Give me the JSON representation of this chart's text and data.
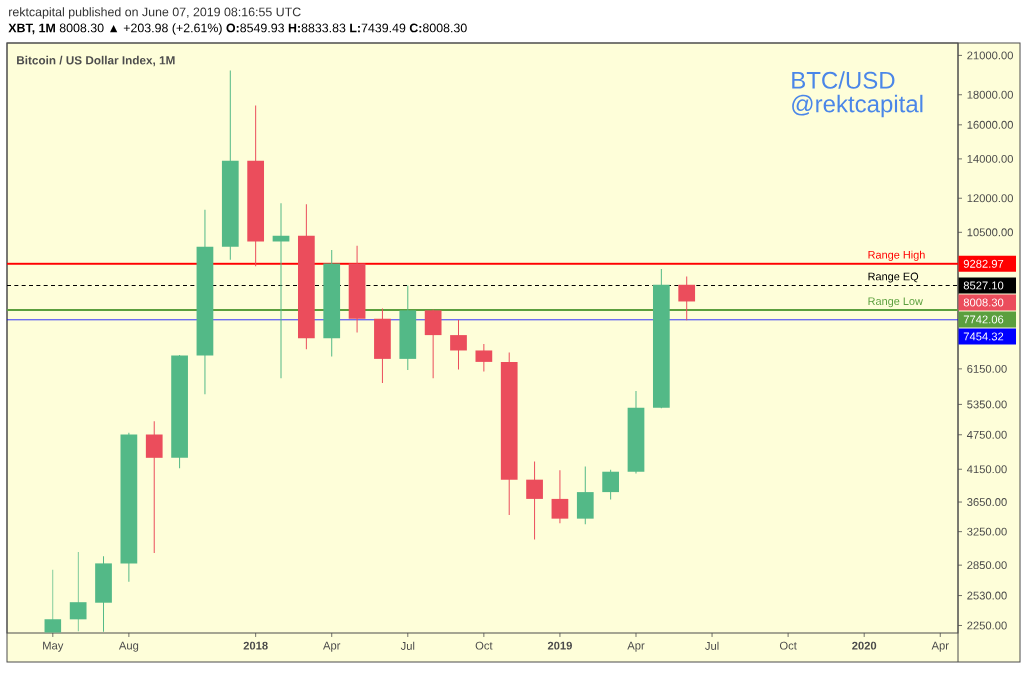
{
  "chart_data": {
    "type": "candlestick",
    "title": "Bitcoin / US Dollar Index, 1M",
    "subtitle": "**XBT, 1M** 8008.30 ▲ +203.98 (+2.61%) **O:**8549.93 **H:**8833.83 **L:**7439.49 **C:**8008.30",
    "annotations": [
      "rektcapital published on June 07, 2019 08:16:55 UTC",
      "BTC/USD",
      "@rektcapital",
      "9282.97",
      "8527.10",
      "8008.30",
      "7742.06",
      "7454.32"
    ],
    "x": [
      "2017-05",
      "2017-06",
      "2017-07",
      "2017-08",
      "2017-09",
      "2017-10",
      "2017-11",
      "2017-12",
      "2018-01",
      "2018-02",
      "2018-03",
      "2018-04",
      "2018-05",
      "2018-06",
      "2018-07",
      "2018-08",
      "2018-09",
      "2018-10",
      "2018-11",
      "2018-12",
      "2019-01",
      "2019-02",
      "2019-03",
      "2019-04",
      "2019-05",
      "2019-06"
    ],
    "ohlc": [
      [
        2190,
        2800,
        2190,
        2305
      ],
      [
        2305,
        3000,
        2200,
        2465
      ],
      [
        2460,
        2950,
        2195,
        2870
      ],
      [
        2870,
        4790,
        2670,
        4755
      ],
      [
        4755,
        5010,
        2990,
        4340
      ],
      [
        4340,
        6490,
        4165,
        6480
      ],
      [
        6480,
        11470,
        5565,
        9920
      ],
      [
        9920,
        19790,
        9430,
        13900
      ],
      [
        13900,
        17250,
        9190,
        10130
      ],
      [
        10130,
        11770,
        5925,
        10360
      ],
      [
        10360,
        11720,
        6640,
        6935
      ],
      [
        6935,
        9800,
        6455,
        9290
      ],
      [
        9290,
        9965,
        7095,
        7485
      ],
      [
        7485,
        7795,
        5820,
        6395
      ],
      [
        6395,
        8525,
        6125,
        7735
      ],
      [
        7735,
        7760,
        5925,
        7020
      ],
      [
        7020,
        7450,
        6135,
        6610
      ],
      [
        6610,
        6780,
        6085,
        6320
      ],
      [
        6320,
        6560,
        3470,
        3985
      ],
      [
        3985,
        4280,
        3150,
        3695
      ],
      [
        3695,
        4135,
        3360,
        3420
      ],
      [
        3420,
        4195,
        3345,
        3795
      ],
      [
        3795,
        4140,
        3685,
        4110
      ],
      [
        4110,
        5640,
        4080,
        5280
      ],
      [
        5280,
        9095,
        5270,
        8550
      ],
      [
        8549.93,
        8833.83,
        7439.49,
        8008.3
      ]
    ],
    "colors": [
      "#53b987",
      "#53b987",
      "#53b987",
      "#53b987",
      "#eb4d5c",
      "#53b987",
      "#53b987",
      "#53b987",
      "#eb4d5c",
      "#53b987",
      "#eb4d5c",
      "#53b987",
      "#eb4d5c",
      "#eb4d5c",
      "#53b987",
      "#eb4d5c",
      "#eb4d5c",
      "#eb4d5c",
      "#eb4d5c",
      "#eb4d5c",
      "#eb4d5c",
      "#53b987",
      "#53b987",
      "#53b987",
      "#53b987",
      "#eb4d5c"
    ],
    "log": true,
    "xlim": [
      "2017-03-07",
      "2020-04-22"
    ],
    "xticks": [
      {
        "value": "2017-05",
        "label": "May"
      },
      {
        "value": "2017-08",
        "label": "Aug"
      },
      {
        "value": "2018-01",
        "label": "2018"
      },
      {
        "value": "2018-04",
        "label": "Apr"
      },
      {
        "value": "2018-07",
        "label": "Jul"
      },
      {
        "value": "2018-10",
        "label": "Oct"
      },
      {
        "value": "2019-01",
        "label": "2019"
      },
      {
        "value": "2019-04",
        "label": "Apr"
      },
      {
        "value": "2019-07",
        "label": "Jul"
      },
      {
        "value": "2019-10",
        "label": "Oct"
      },
      {
        "value": "2020-01",
        "label": "2020"
      },
      {
        "value": "2020-04",
        "label": "Apr"
      }
    ],
    "ylim": [
      2185,
      22050
    ],
    "yticks": [
      {
        "value": 2250,
        "label": "2250.00"
      },
      {
        "value": 2530,
        "label": "2530.00"
      },
      {
        "value": 2850,
        "label": "2850.00"
      },
      {
        "value": 3250,
        "label": "3250.00"
      },
      {
        "value": 3650,
        "label": "3650.00"
      },
      {
        "value": 4150,
        "label": "4150.00"
      },
      {
        "value": 4750,
        "label": "4750.00"
      },
      {
        "value": 5350,
        "label": "5350.00"
      },
      {
        "value": 6150,
        "label": "6150.00"
      },
      {
        "value": 10500,
        "label": "10500.00"
      },
      {
        "value": 12000,
        "label": "12000.00"
      },
      {
        "value": 14000,
        "label": "14000.00"
      },
      {
        "value": 16000,
        "label": "16000.00"
      },
      {
        "value": 18000,
        "label": "18000.00"
      },
      {
        "value": 21000,
        "label": "21000.00"
      }
    ],
    "ref_lines": [
      {
        "axis": "y",
        "value": 9282.97,
        "label": "Range High",
        "color": "#ff0000"
      },
      {
        "axis": "y",
        "value": 8527.1,
        "label": "Range EQ",
        "color": "#000000",
        "line_style": "dashed"
      },
      {
        "axis": "y",
        "value": 7742.06,
        "label": "Range Low",
        "color": "#5b9f3e"
      },
      {
        "axis": "y",
        "value": 7454.32,
        "color": "#0000ff"
      }
    ]
  }
}
